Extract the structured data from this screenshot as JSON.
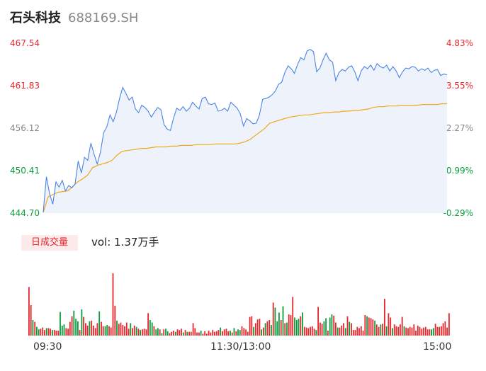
{
  "header": {
    "name": "石头科技",
    "code": "688169.SH"
  },
  "colors": {
    "up": "#e8262c",
    "down": "#0a9d3e",
    "neutral": "#888888",
    "price_line": "#4a84e8",
    "avg_line": "#f0a818",
    "area_fill": "#eef3fb"
  },
  "volume_tab": "日成交量",
  "volume_text": "vol: 1.37万手",
  "chart_data": [
    {
      "type": "line",
      "title": "",
      "y_left_ticks": [
        "467.54",
        "461.83",
        "456.12",
        "450.41",
        "444.70"
      ],
      "y_right_ticks": [
        "4.83%",
        "3.55%",
        "2.27%",
        "0.99%",
        "-0.29%"
      ],
      "ylim": [
        444.7,
        467.54
      ],
      "x_ticks": [
        "09:30",
        "11:30/13:00",
        "15:00"
      ],
      "series": [
        {
          "role": "price",
          "values": [
            444.8,
            449.6,
            447.3,
            445.9,
            448.9,
            448.2,
            449.1,
            447.7,
            448.4,
            448.1,
            448.6,
            451.7,
            450.1,
            452.2,
            451.8,
            454.1,
            452.6,
            451.3,
            452.9,
            455.5,
            456.3,
            457.9,
            457.0,
            458.2,
            460.1,
            461.6,
            460.8,
            459.9,
            460.3,
            458.7,
            458.2,
            459.2,
            458.9,
            458.4,
            457.6,
            458.3,
            458.9,
            458.6,
            456.6,
            456.0,
            455.8,
            457.5,
            458.8,
            458.5,
            459.0,
            458.4,
            458.8,
            459.6,
            459.1,
            458.7,
            460.1,
            460.3,
            459.4,
            459.3,
            459.5,
            458.4,
            458.5,
            458.8,
            458.4,
            459.6,
            459.2,
            458.8,
            458.0,
            456.4,
            457.4,
            457.1,
            456.7,
            456.8,
            457.9,
            460.0,
            460.1,
            460.3,
            460.6,
            461.1,
            462.0,
            462.3,
            463.6,
            464.5,
            464.1,
            463.5,
            464.7,
            465.6,
            465.3,
            466.5,
            466.7,
            466.4,
            463.7,
            464.2,
            465.3,
            466.2,
            465.3,
            465.0,
            462.5,
            463.6,
            464.0,
            463.8,
            464.3,
            464.5,
            463.7,
            462.5,
            463.8,
            464.4,
            464.1,
            464.6,
            463.9,
            464.8,
            464.4,
            464.2,
            464.6,
            463.8,
            464.4,
            463.8,
            462.9,
            463.7,
            464.2,
            464.1,
            464.4,
            464.3,
            463.8,
            464.1,
            463.9,
            464.2,
            463.6,
            463.9,
            464.0,
            463.2,
            463.4,
            463.3
          ],
          "color_key": "price_line"
        },
        {
          "role": "average",
          "values": [
            444.8,
            446.9,
            447.2,
            447.5,
            447.6,
            447.7,
            448.3,
            448.9,
            449.3,
            449.8,
            450.8,
            451.1,
            451.3,
            451.5,
            451.8,
            452.5,
            453.0,
            453.1,
            453.2,
            453.3,
            453.4,
            453.4,
            453.5,
            453.6,
            453.6,
            453.6,
            453.7,
            453.7,
            453.8,
            453.8,
            453.8,
            453.9,
            453.9,
            453.9,
            453.9,
            454.0,
            454.0,
            454.0,
            454.0,
            454.0,
            454.1,
            454.3,
            454.6,
            455.1,
            455.6,
            456.1,
            456.8,
            457.0,
            457.2,
            457.4,
            457.6,
            457.7,
            457.8,
            457.9,
            457.9,
            458.0,
            458.1,
            458.2,
            458.2,
            458.3,
            458.3,
            458.4,
            458.4,
            458.5,
            458.5,
            458.6,
            458.7,
            458.9,
            459.0,
            459.0,
            459.1,
            459.1,
            459.1,
            459.2,
            459.2,
            459.2,
            459.2,
            459.3,
            459.3,
            459.3,
            459.3,
            459.4,
            459.4
          ],
          "color_key": "avg_line"
        }
      ]
    },
    {
      "type": "bar",
      "title": "",
      "ylim": [
        0,
        100
      ],
      "values": [
        78,
        49,
        25,
        22,
        14,
        10,
        11,
        13,
        9,
        12,
        12,
        11,
        9,
        9,
        8,
        8,
        38,
        16,
        18,
        12,
        11,
        22,
        31,
        40,
        27,
        23,
        9,
        42,
        30,
        20,
        16,
        23,
        24,
        16,
        12,
        20,
        39,
        22,
        15,
        15,
        17,
        15,
        13,
        100,
        48,
        24,
        19,
        21,
        17,
        15,
        21,
        11,
        20,
        12,
        16,
        14,
        11,
        9,
        10,
        11,
        10,
        36,
        25,
        21,
        15,
        10,
        12,
        10,
        4,
        10,
        11,
        7,
        4,
        6,
        8,
        6,
        10,
        9,
        11,
        5,
        9,
        6,
        6,
        6,
        20,
        12,
        5,
        5,
        8,
        3,
        7,
        3,
        8,
        5,
        9,
        6,
        7,
        9,
        13,
        7,
        10,
        11,
        7,
        8,
        5,
        12,
        7,
        10,
        9,
        15,
        12,
        10,
        6,
        30,
        31,
        14,
        20,
        26,
        27,
        10,
        13,
        20,
        23,
        25,
        17,
        53,
        45,
        23,
        37,
        25,
        47,
        20,
        21,
        34,
        33,
        62,
        29,
        25,
        27,
        31,
        37,
        14,
        13,
        12,
        14,
        15,
        11,
        9,
        46,
        21,
        19,
        23,
        28,
        8,
        29,
        34,
        32,
        21,
        13,
        13,
        16,
        20,
        12,
        31,
        22,
        20,
        9,
        9,
        14,
        12,
        15,
        8,
        33,
        31,
        29,
        28,
        26,
        24,
        18,
        14,
        18,
        19,
        59,
        15,
        36,
        29,
        12,
        18,
        15,
        14,
        18,
        30,
        15,
        13,
        12,
        14,
        13,
        18,
        8,
        16,
        14,
        11,
        13,
        14,
        10,
        10,
        10,
        12,
        19,
        14,
        14,
        15,
        20,
        23,
        13,
        36
      ]
    }
  ]
}
